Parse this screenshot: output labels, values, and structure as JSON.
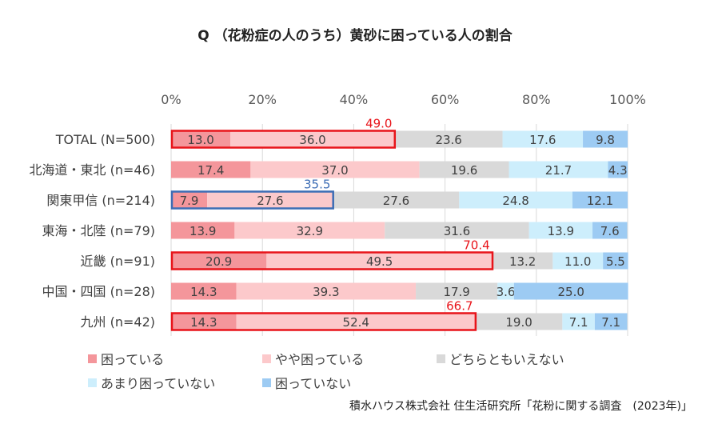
{
  "chart_data": {
    "type": "bar",
    "orientation": "horizontal",
    "stacked": "percent",
    "title": "Q （花粉症の人のうち）黄砂に困っている人の割合",
    "categories": [
      "TOTAL (N=500)",
      "北海道・東北 (n=46)",
      "関東甲信 (n=214)",
      "東海・北陸 (n=79)",
      "近畿 (n=91)",
      "中国・四国 (n=28)",
      "九州 (n=42)"
    ],
    "series": [
      {
        "name": "困っている",
        "color": "#f4969b",
        "values": [
          13.0,
          17.4,
          7.9,
          13.9,
          20.9,
          14.3,
          14.3
        ]
      },
      {
        "name": "やや困っている",
        "color": "#fcc9cb",
        "values": [
          36.0,
          37.0,
          27.6,
          32.9,
          49.5,
          39.3,
          52.4
        ]
      },
      {
        "name": "どちらともいえない",
        "color": "#d9d9d9",
        "values": [
          23.6,
          19.6,
          27.6,
          31.6,
          13.2,
          17.9,
          19.0
        ]
      },
      {
        "name": "あまり困っていない",
        "color": "#cdeefc",
        "values": [
          17.6,
          21.7,
          24.8,
          13.9,
          11.0,
          3.6,
          7.1
        ]
      },
      {
        "name": "困っていない",
        "color": "#9dcbf3",
        "values": [
          9.8,
          4.3,
          12.1,
          7.6,
          5.5,
          25.0,
          7.1
        ]
      }
    ],
    "xlim": [
      0,
      100
    ],
    "x_ticks": [
      "0%",
      "20%",
      "40%",
      "60%",
      "80%",
      "100%"
    ],
    "x_axis_position": "top",
    "grid": true,
    "legend_placement": "bottom",
    "highlights": [
      {
        "category_index": 0,
        "total": "49.0",
        "color": "#e8141a"
      },
      {
        "category_index": 2,
        "total": "35.5",
        "color": "#3d6db5"
      },
      {
        "category_index": 4,
        "total": "70.4",
        "color": "#e8141a"
      },
      {
        "category_index": 6,
        "total": "66.7",
        "color": "#e8141a"
      }
    ]
  },
  "source": "積水ハウス株式会社 住生活研究所「花粉に関する調査　(2023年)」"
}
